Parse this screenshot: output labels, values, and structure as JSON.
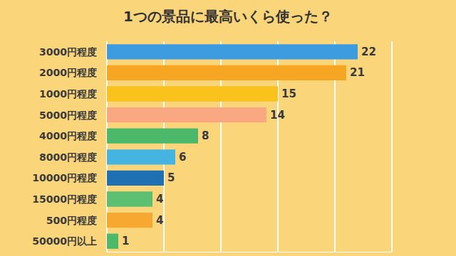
{
  "chart_data": {
    "type": "bar",
    "title": "1つの景品に最高いくら使った？",
    "orientation": "horizontal",
    "categories": [
      "3000円程度",
      "2000円程度",
      "1000円程度",
      "5000円程度",
      "4000円程度",
      "8000円程度",
      "10000円程度",
      "15000円程度",
      "500円程度",
      "50000円以上"
    ],
    "values": [
      22,
      21,
      15,
      14,
      8,
      6,
      5,
      4,
      4,
      1
    ],
    "colors": [
      "#3d9be0",
      "#f7a623",
      "#f9c21c",
      "#f9a882",
      "#4cb86a",
      "#45b4e0",
      "#1f6fb3",
      "#5cbf72",
      "#f7a830",
      "#4cb86a"
    ],
    "xlim": [
      0,
      25
    ],
    "xticks": [
      0,
      5,
      10,
      15,
      20,
      25
    ],
    "grid": true,
    "data_labels": true,
    "tick_labels": "y"
  }
}
